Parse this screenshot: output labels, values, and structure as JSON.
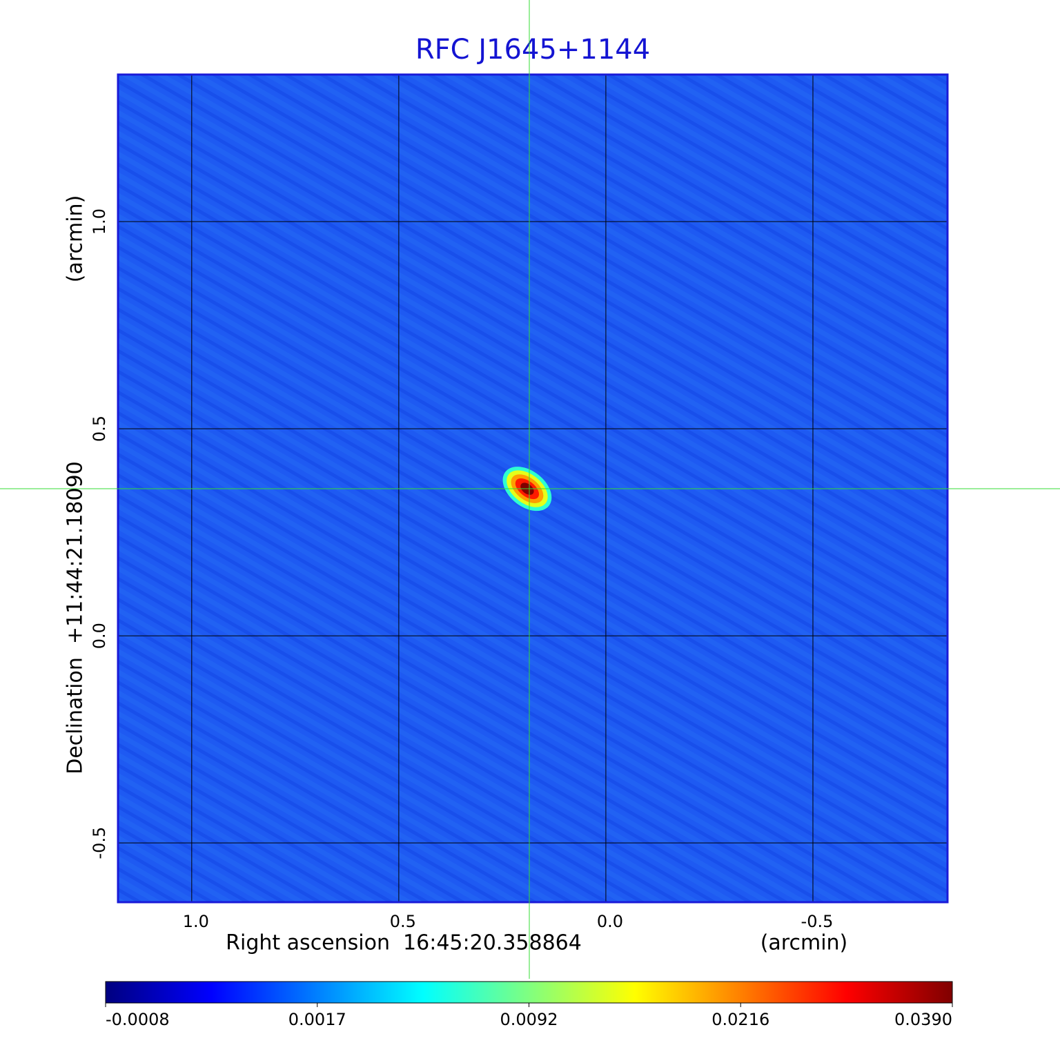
{
  "chart_data": {
    "type": "image",
    "title": "RFC J1645+1144",
    "xlabel": "Right ascension  16:45:20.358864",
    "xunit": "(arcmin)",
    "ylabel": "Declination  +11:44:21.18090",
    "yunit": "(arcmin)",
    "xlim": [
      1.178,
      -0.825
    ],
    "ylim": [
      -0.643,
      1.355
    ],
    "xticks": [
      {
        "value": 1,
        "label": "1.0"
      },
      {
        "value": 0.5,
        "label": "0.5"
      },
      {
        "value": 0,
        "label": "0.0"
      },
      -0.5
    ],
    "yticks": [
      {
        "value": 1,
        "label": "1.0"
      },
      {
        "value": 0.5,
        "label": "0.5"
      },
      {
        "value": 0,
        "label": "0.0"
      },
      -0.5
    ],
    "grid": true,
    "colormap": "jet",
    "clim": [
      -0.0008,
      0.039
    ],
    "cticks": [
      -0.0008,
      0.0017,
      0.0092,
      0.0216,
      {
        "value": 0.039,
        "label": "0.0390"
      }
    ],
    "source": {
      "x": 0.19,
      "y": 0.355,
      "peak": 0.039
    }
  }
}
